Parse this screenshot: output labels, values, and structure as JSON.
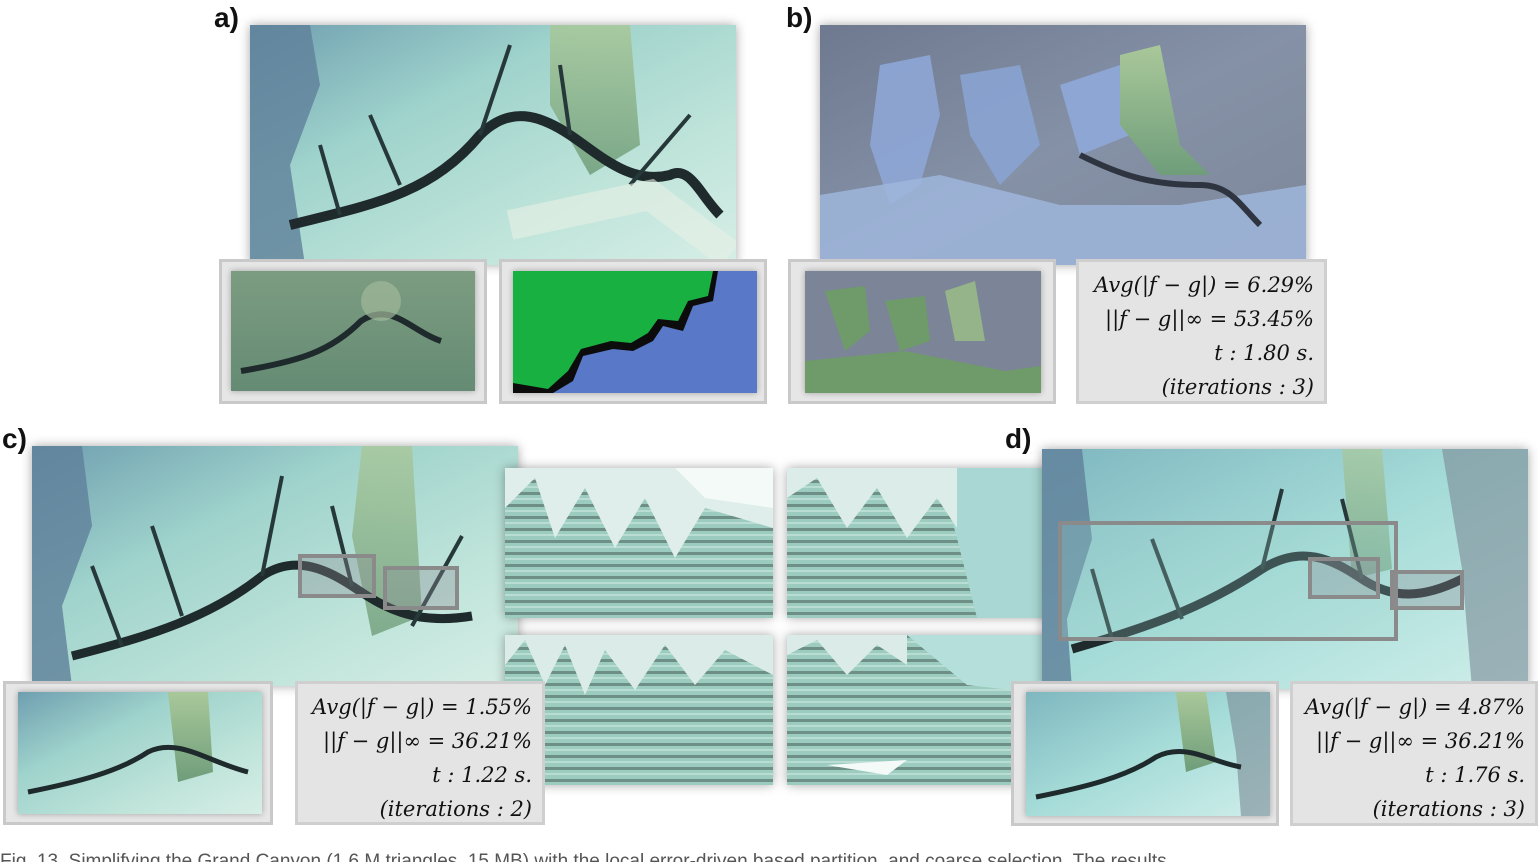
{
  "panels": {
    "a": {
      "label": "a)"
    },
    "b": {
      "label": "b)",
      "stats": {
        "avg": "Avg(|f − g|) = 6.29%",
        "linf": "||f − g||∞ = 53.45%",
        "time": "t :  1.80 s.",
        "iter": "(iterations :  3)"
      }
    },
    "c": {
      "label": "c)",
      "stats": {
        "avg": "Avg(|f − g|) = 1.55%",
        "linf": "||f − g||∞ = 36.21%",
        "time": "t :  1.22 s.",
        "iter": "(iterations :  2)"
      }
    },
    "d": {
      "label": "d)",
      "stats": {
        "avg": "Avg(|f − g|) = 4.87%",
        "linf": "||f − g||∞ = 36.21%",
        "time": "t :  1.76 s.",
        "iter": "(iterations :  3)"
      }
    }
  },
  "colors": {
    "terrain_light": "#a8d8d0",
    "terrain_mid": "#7fbcb8",
    "terrain_dark": "#2a3a3c",
    "mask_green": "#18b040",
    "mask_blue": "#5a78c8",
    "mask_black": "#0c0c0c",
    "frame_gray": "#c9c9c9",
    "stats_bg": "#e4e4e4"
  },
  "caption": {
    "text": "Fig. 13.   Simplifying the Grand Canyon (1.6 M triangles, 15 MB) with the local error-driven based partition, and coarse selection. The results"
  }
}
